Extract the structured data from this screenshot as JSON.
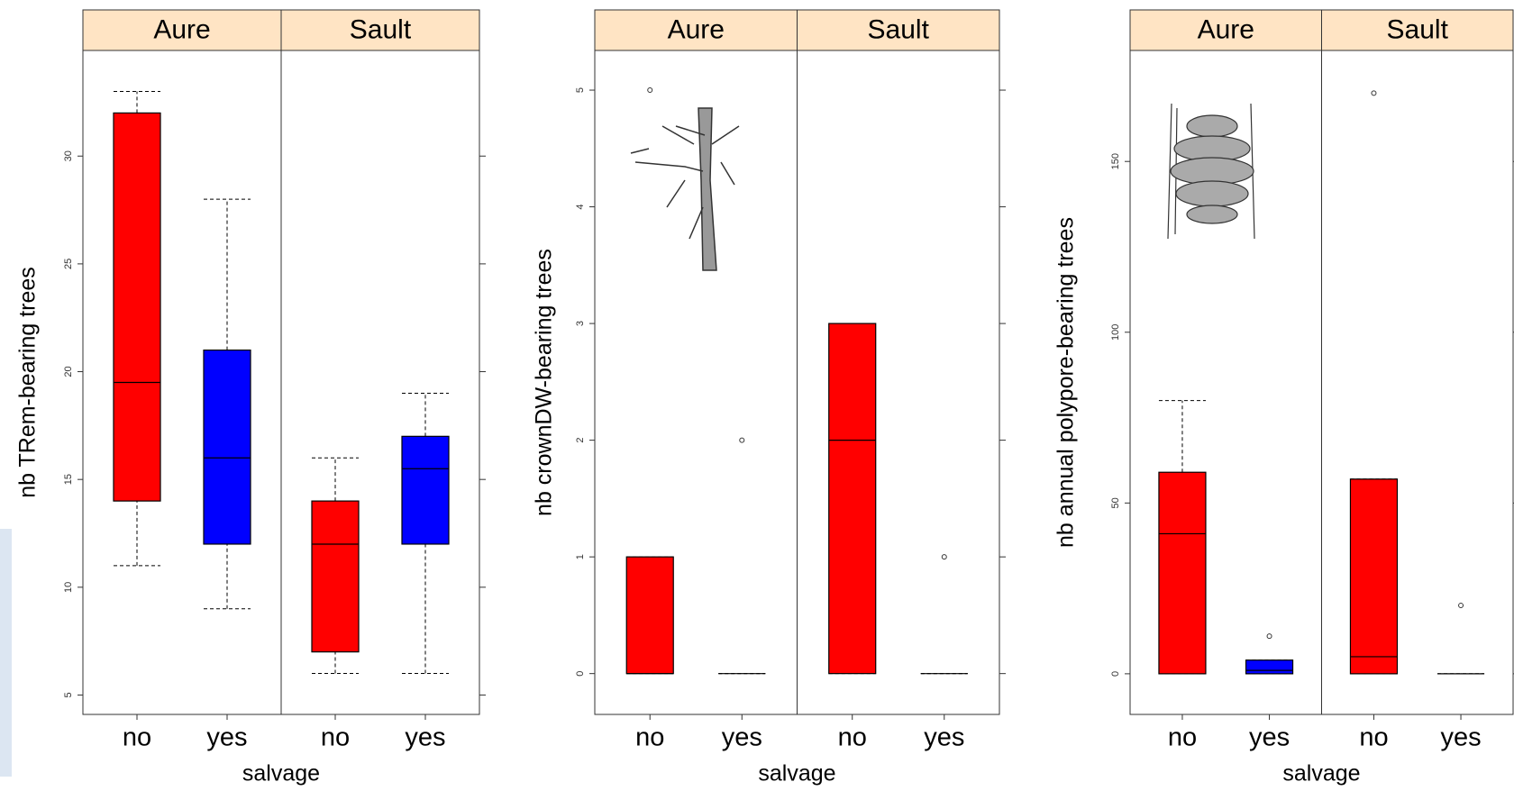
{
  "chart_data": [
    {
      "type": "box",
      "ylabel": "nb TRem-bearing trees",
      "xlabel": "salvage",
      "ylim": [
        4.1,
        34.9
      ],
      "yticks": [
        5,
        10,
        15,
        20,
        25,
        30
      ],
      "categories": [
        "no",
        "yes"
      ],
      "colors": [
        "#ff0000",
        "#0000ff"
      ],
      "panels": [
        {
          "name": "Aure",
          "boxes": [
            {
              "whislo": 11,
              "q1": 14,
              "med": 19.5,
              "q3": 32,
              "whishi": 33
            },
            {
              "whislo": 9,
              "q1": 12,
              "med": 16,
              "q3": 21,
              "whishi": 28
            }
          ]
        },
        {
          "name": "Sault",
          "boxes": [
            {
              "whislo": 6,
              "q1": 7,
              "med": 12,
              "q3": 14,
              "whishi": 16
            },
            {
              "whislo": 6,
              "q1": 12,
              "med": 15.5,
              "q3": 17,
              "whishi": 19
            }
          ]
        }
      ]
    },
    {
      "type": "box",
      "ylabel": "nb crownDW-bearing trees",
      "xlabel": "salvage",
      "ylim": [
        -0.35,
        5.34
      ],
      "yticks": [
        0,
        1,
        2,
        3,
        4,
        5
      ],
      "categories": [
        "no",
        "yes"
      ],
      "colors": [
        "#ff0000",
        "#0000ff"
      ],
      "panels": [
        {
          "name": "Aure",
          "boxes": [
            {
              "whislo": 0,
              "q1": 0,
              "med": 0,
              "q3": 1,
              "whishi": 1,
              "fliers": [
                5
              ]
            },
            {
              "whislo": 0,
              "q1": 0,
              "med": 0,
              "q3": 0,
              "whishi": 0,
              "fliers": [
                2
              ]
            }
          ]
        },
        {
          "name": "Sault",
          "boxes": [
            {
              "whislo": 0,
              "q1": 0,
              "med": 2,
              "q3": 3,
              "whishi": 3
            },
            {
              "whislo": 0,
              "q1": 0,
              "med": 0,
              "q3": 0,
              "whishi": 0,
              "fliers": [
                1
              ]
            }
          ]
        }
      ]
    },
    {
      "type": "box",
      "ylabel": "nb annual polypore-bearing trees",
      "xlabel": "salvage",
      "ylim": [
        -11.9,
        182.5
      ],
      "yticks": [
        0,
        50,
        100,
        150
      ],
      "categories": [
        "no",
        "yes"
      ],
      "colors": [
        "#ff0000",
        "#0000ff"
      ],
      "panels": [
        {
          "name": "Aure",
          "boxes": [
            {
              "whislo": 0,
              "q1": 0,
              "med": 41,
              "q3": 59,
              "whishi": 80
            },
            {
              "whislo": 0,
              "q1": 0,
              "med": 1,
              "q3": 4,
              "whishi": 4,
              "fliers": [
                11
              ]
            }
          ]
        },
        {
          "name": "Sault",
          "boxes": [
            {
              "whislo": 0,
              "q1": 0,
              "med": 5,
              "q3": 57,
              "whishi": 57,
              "fliers": [
                170
              ]
            },
            {
              "whislo": 0,
              "q1": 0,
              "med": 0,
              "q3": 0,
              "whishi": 0,
              "fliers": [
                20
              ]
            }
          ]
        }
      ]
    }
  ]
}
